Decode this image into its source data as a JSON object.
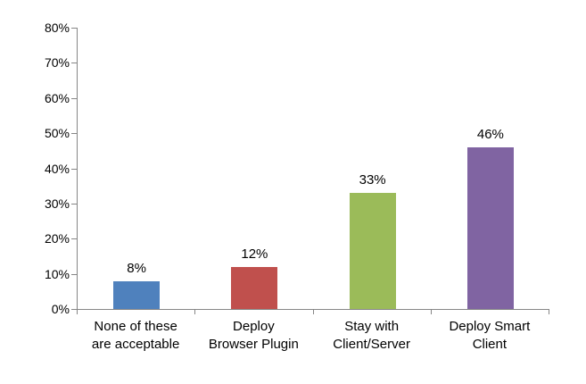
{
  "chart_data": {
    "type": "bar",
    "title": "",
    "xlabel": "",
    "ylabel": "",
    "categories": [
      "None of these\nare acceptable",
      "Deploy\nBrowser Plugin",
      "Stay with\nClient/Server",
      "Deploy Smart\nClient"
    ],
    "values": [
      8,
      12,
      33,
      46
    ],
    "value_labels": [
      "8%",
      "12%",
      "33%",
      "46%"
    ],
    "bar_colors": [
      "#4F81BD",
      "#C0504D",
      "#9BBB59",
      "#8064A2"
    ],
    "ylim": [
      0,
      80
    ],
    "y_tick_labels": [
      "0%",
      "10%",
      "20%",
      "30%",
      "40%",
      "50%",
      "60%",
      "70%",
      "80%"
    ],
    "grid": false,
    "legend_position": "none",
    "axis_color": "#868686",
    "background_color": "#ffffff",
    "text_color": "#000000"
  }
}
